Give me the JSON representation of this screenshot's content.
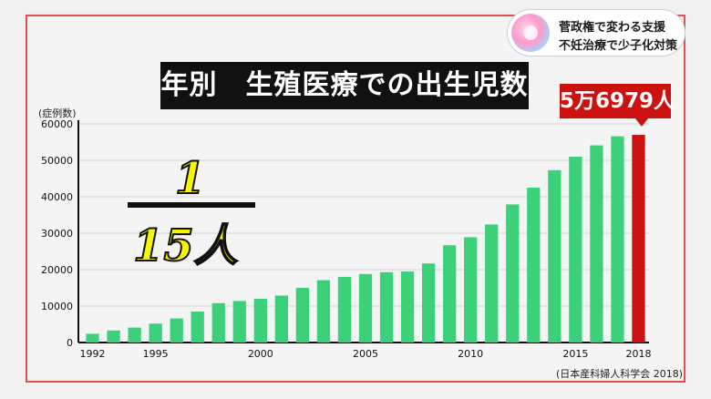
{
  "badge": {
    "line1": "菅政権で変わる支援",
    "line2": "不妊治療で少子化対策"
  },
  "callout": {
    "text": "5万6979人"
  },
  "fraction": {
    "numerator": "1",
    "denominator": "15人"
  },
  "source": "(日本産科婦人科学会 2018)",
  "colors": {
    "bar": "#3dd07a",
    "highlight": "#cc1111",
    "frame": "#e05050"
  },
  "chart_data": {
    "type": "bar",
    "title": "年別　生殖医療での出生児数",
    "ylabel": "(症例数)",
    "xlabel": "",
    "ylim": [
      0,
      60000
    ],
    "yticks": [
      0,
      10000,
      20000,
      30000,
      40000,
      50000,
      60000
    ],
    "xtick_labels": [
      "1992",
      "1995",
      "2000",
      "2005",
      "2010",
      "2015",
      "2018"
    ],
    "categories": [
      "1992",
      "1993",
      "1994",
      "1995",
      "1996",
      "1997",
      "1998",
      "1999",
      "2000",
      "2001",
      "2002",
      "2003",
      "2004",
      "2005",
      "2006",
      "2007",
      "2008",
      "2009",
      "2010",
      "2011",
      "2012",
      "2013",
      "2014",
      "2015",
      "2016",
      "2017",
      "2018"
    ],
    "values": [
      2400,
      3300,
      4100,
      5200,
      6600,
      8500,
      10800,
      11400,
      12000,
      12900,
      15000,
      17100,
      18000,
      18800,
      19300,
      19500,
      21700,
      26700,
      28900,
      32400,
      37900,
      42500,
      47300,
      51000,
      54100,
      56600,
      56979
    ],
    "highlight_index": 26,
    "grid": true
  }
}
